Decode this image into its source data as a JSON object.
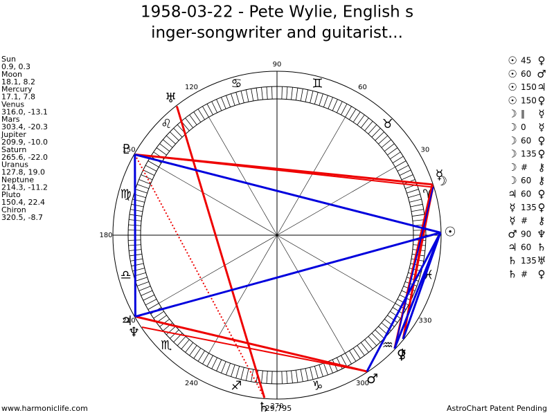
{
  "header": {
    "title_line1": "1958-03-22 - Pete Wylie, English s",
    "title_line2": "inger-songwriter and guitarist..."
  },
  "planets": [
    {
      "name": "Sun",
      "glyph": "☉",
      "longitude": 0.9,
      "coords": "0.9, 0.3"
    },
    {
      "name": "Moon",
      "glyph": "☽",
      "longitude": 18.1,
      "coords": "18.1, 8.2"
    },
    {
      "name": "Mercury",
      "glyph": "☿",
      "longitude": 17.1,
      "coords": "17.1, 7.8"
    },
    {
      "name": "Venus",
      "glyph": "♀",
      "longitude": 316.0,
      "coords": "316.0, -13.1"
    },
    {
      "name": "Mars",
      "glyph": "♂",
      "longitude": 303.4,
      "coords": "303.4, -20.3"
    },
    {
      "name": "Jupiter",
      "glyph": "♃",
      "longitude": 209.9,
      "coords": "209.9, -10.0"
    },
    {
      "name": "Saturn",
      "glyph": "♄",
      "longitude": 265.6,
      "coords": "265.6, -22.0"
    },
    {
      "name": "Uranus",
      "glyph": "♅",
      "longitude": 127.8,
      "coords": "127.8, 19.0"
    },
    {
      "name": "Neptune",
      "glyph": "♆",
      "longitude": 214.3,
      "coords": "214.3, -11.2"
    },
    {
      "name": "Pluto",
      "glyph": "♇",
      "longitude": 150.4,
      "coords": "150.4, 22.4"
    },
    {
      "name": "Chiron",
      "glyph": "⚷",
      "longitude": 320.5,
      "coords": "320.5, -8.7"
    }
  ],
  "signs": [
    "♈",
    "♉",
    "♊",
    "♋",
    "♌",
    "♍",
    "♎",
    "♏",
    "♐",
    "♑",
    "♒",
    "♓"
  ],
  "degree_labels": [
    30,
    60,
    90,
    120,
    150,
    180,
    210,
    240,
    270,
    300,
    330
  ],
  "aspects": [
    [
      "☉",
      "45",
      "♀"
    ],
    [
      "☉",
      "60",
      "♂"
    ],
    [
      "☉",
      "150",
      "♃"
    ],
    [
      "☉",
      "150",
      "♀"
    ],
    [
      "☽",
      "‖",
      "☿"
    ],
    [
      "☽",
      "0",
      "☿"
    ],
    [
      "☽",
      "60",
      "♀"
    ],
    [
      "☽",
      "135",
      "♀"
    ],
    [
      "☽",
      "#",
      "⚷"
    ],
    [
      "☽",
      "60",
      "⚷"
    ],
    [
      "♃",
      "60",
      "♀"
    ],
    [
      "☿",
      "135",
      "♀"
    ],
    [
      "☿",
      "#",
      "⚷"
    ],
    [
      "♂",
      "90",
      "♆"
    ],
    [
      "♃",
      "60",
      "♄"
    ],
    [
      "♄",
      "135",
      "♅"
    ],
    [
      "♄",
      "#",
      "♀"
    ]
  ],
  "footer": {
    "left": "www.harmoniclife.com",
    "center": "-29,795",
    "right": "AstroChart Patent Pending"
  }
}
